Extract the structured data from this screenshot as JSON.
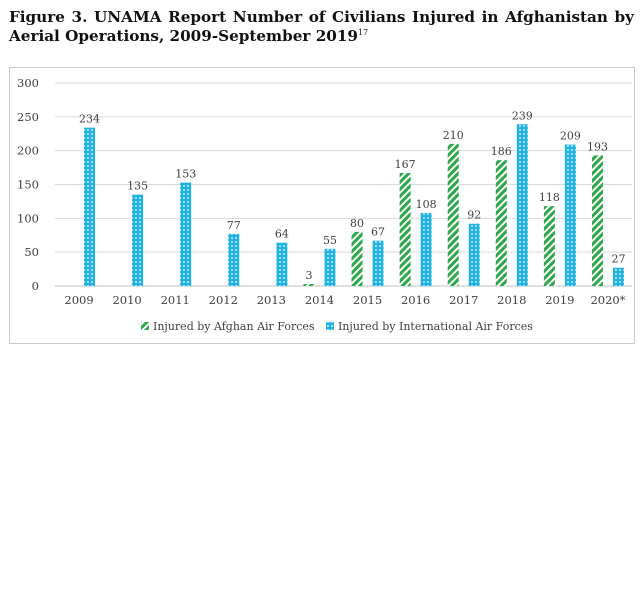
{
  "figure": {
    "title": "Figure 3. UNAMA Report Number of Civilians Injured in Afghanistan by Aerial Operations, 2009-September 2019",
    "footnote": "17"
  },
  "colors": {
    "afghan": "#2aa84a",
    "international": "#1fb2e3",
    "gridline": "#d9d9d9",
    "axis": "#bfbfbf",
    "text": "#404040"
  },
  "chart_data": {
    "type": "bar",
    "title": "",
    "xlabel": "",
    "ylabel": "",
    "categories": [
      "2009",
      "2010",
      "2011",
      "2012",
      "2013",
      "2014",
      "2015",
      "2016",
      "2017",
      "2018",
      "2019",
      "2020*"
    ],
    "series": [
      {
        "name": "Injured by Afghan Air Forces",
        "values": [
          null,
          null,
          null,
          null,
          null,
          3,
          80,
          167,
          210,
          186,
          118,
          193
        ],
        "pattern": "diagonal-stripes"
      },
      {
        "name": "Injured by International Air Forces",
        "values": [
          234,
          135,
          153,
          77,
          64,
          55,
          67,
          108,
          92,
          239,
          209,
          27
        ],
        "pattern": "dotted"
      }
    ],
    "ylim": [
      0,
      300
    ],
    "yticks": [
      0,
      50,
      100,
      150,
      200,
      250,
      300
    ],
    "grid": true,
    "legend_position": "bottom"
  }
}
